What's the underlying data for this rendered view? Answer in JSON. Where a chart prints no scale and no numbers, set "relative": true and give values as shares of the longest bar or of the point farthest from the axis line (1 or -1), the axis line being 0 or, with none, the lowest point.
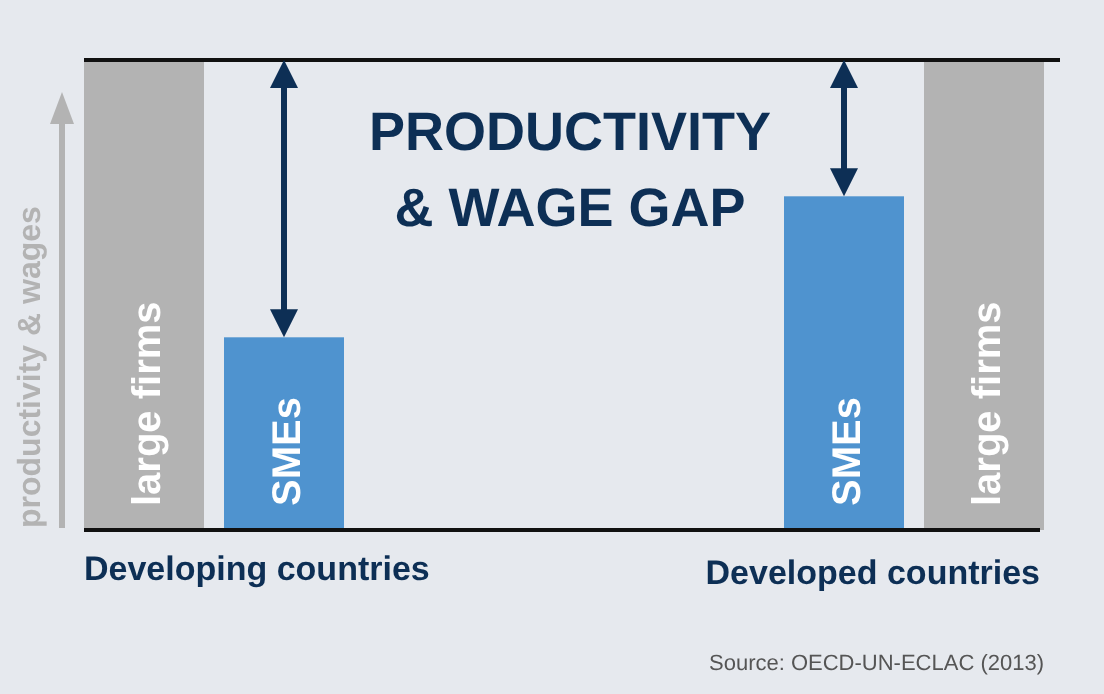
{
  "chart_data": {
    "type": "bar",
    "relative": true,
    "title": "PRODUCTIVITY\n& WAGE GAP",
    "ylabel": "productivity & wages",
    "categories": [
      "large firms",
      "SMEs",
      null,
      null,
      null,
      "SMEs",
      "large firms"
    ],
    "values": [
      1,
      0.41,
      null,
      null,
      null,
      0.71,
      1
    ],
    "colors": [
      "#b3b3b3",
      "#4f93cf",
      null,
      null,
      null,
      "#4f93cf",
      "#b3b3b3"
    ],
    "ref_lines": [
      {
        "axis": "y",
        "value": 1,
        "color": "#111111"
      }
    ],
    "annotations": [
      "Developing countries",
      "Developed countries",
      "Source: OECD-UN-ECLAC (2013)"
    ]
  }
}
